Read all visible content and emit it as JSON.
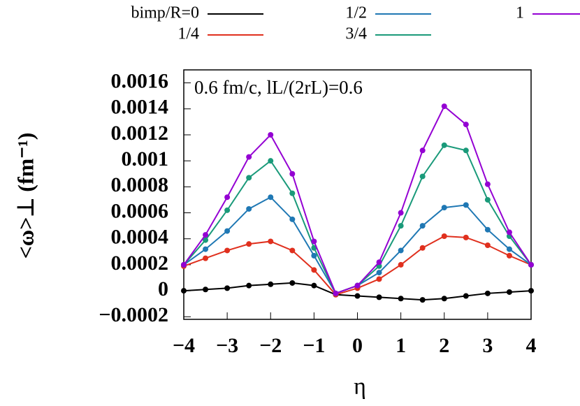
{
  "chart_data": {
    "type": "line",
    "annotation": "0.6 fm/c, lL/(2rL)=0.6",
    "xlabel": "η",
    "ylabel": "<ω>⊥ (fm⁻¹)",
    "x": [
      -4,
      -3.5,
      -3,
      -2.5,
      -2,
      -1.5,
      -1,
      -0.5,
      0,
      0.5,
      1,
      1.5,
      2,
      2.5,
      3,
      3.5,
      4
    ],
    "series": [
      {
        "name": "bimp/R=0",
        "color": "#000000",
        "values": [
          0,
          1e-05,
          2e-05,
          4e-05,
          5e-05,
          6e-05,
          4e-05,
          -3e-05,
          -4e-05,
          -5e-05,
          -6e-05,
          -7e-05,
          -6e-05,
          -4e-05,
          -2e-05,
          -1e-05,
          0
        ]
      },
      {
        "name": "1/4",
        "color": "#e0301e",
        "values": [
          0.00019,
          0.00025,
          0.00031,
          0.00036,
          0.00038,
          0.00031,
          0.00016,
          -3e-05,
          2e-05,
          9e-05,
          0.0002,
          0.00033,
          0.00042,
          0.00041,
          0.00035,
          0.00027,
          0.0002
        ]
      },
      {
        "name": "1/2",
        "color": "#1f78b4",
        "values": [
          0.0002,
          0.00032,
          0.00046,
          0.00063,
          0.00072,
          0.00055,
          0.00027,
          -2e-05,
          4e-05,
          0.00014,
          0.00031,
          0.0005,
          0.00064,
          0.00066,
          0.00047,
          0.00032,
          0.0002
        ]
      },
      {
        "name": "3/4",
        "color": "#1a9a7a",
        "values": [
          0.0002,
          0.00039,
          0.00062,
          0.00087,
          0.001,
          0.00075,
          0.00033,
          -2e-05,
          4e-05,
          0.00019,
          0.0005,
          0.00088,
          0.00112,
          0.00108,
          0.0007,
          0.00042,
          0.0002
        ]
      },
      {
        "name": "1",
        "color": "#9400d3",
        "values": [
          0.0002,
          0.00043,
          0.00072,
          0.00103,
          0.0012,
          0.0009,
          0.00038,
          -2e-05,
          4e-05,
          0.00022,
          0.0006,
          0.00108,
          0.00142,
          0.00128,
          0.00082,
          0.00045,
          0.0002
        ]
      }
    ],
    "xlim": [
      -4,
      4
    ],
    "xticks": [
      {
        "value": -4,
        "label": "−4"
      },
      {
        "value": -3,
        "label": "−3"
      },
      {
        "value": -2,
        "label": "−2"
      },
      {
        "value": -1,
        "label": "−1"
      },
      0,
      1,
      2,
      3,
      4
    ],
    "ylim": [
      -0.00022,
      0.0017
    ],
    "yticks": [
      {
        "value": -0.0002,
        "label": "−0.0002"
      },
      0,
      0.0002,
      0.0004,
      0.0006,
      0.0008,
      0.001,
      0.0012,
      0.0014,
      0.0016
    ]
  }
}
